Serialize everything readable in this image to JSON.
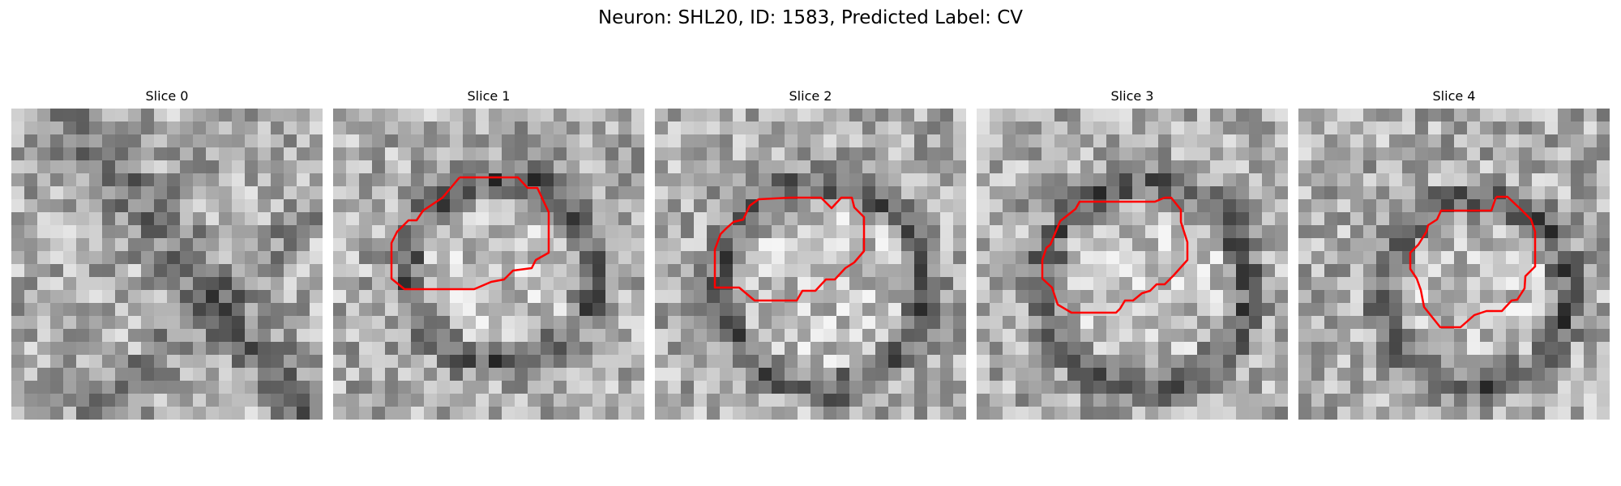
{
  "figure": {
    "title": "Neuron: SHL20, ID: 1583, Predicted Label: CV"
  },
  "colors": {
    "contour": "#ff0000",
    "background": "#ffffff"
  },
  "panels": [
    {
      "title": "Slice 0",
      "has_contour": false
    },
    {
      "title": "Slice 1",
      "has_contour": true
    },
    {
      "title": "Slice 2",
      "has_contour": true
    },
    {
      "title": "Slice 3",
      "has_contour": true
    },
    {
      "title": "Slice 4",
      "has_contour": true
    }
  ]
}
